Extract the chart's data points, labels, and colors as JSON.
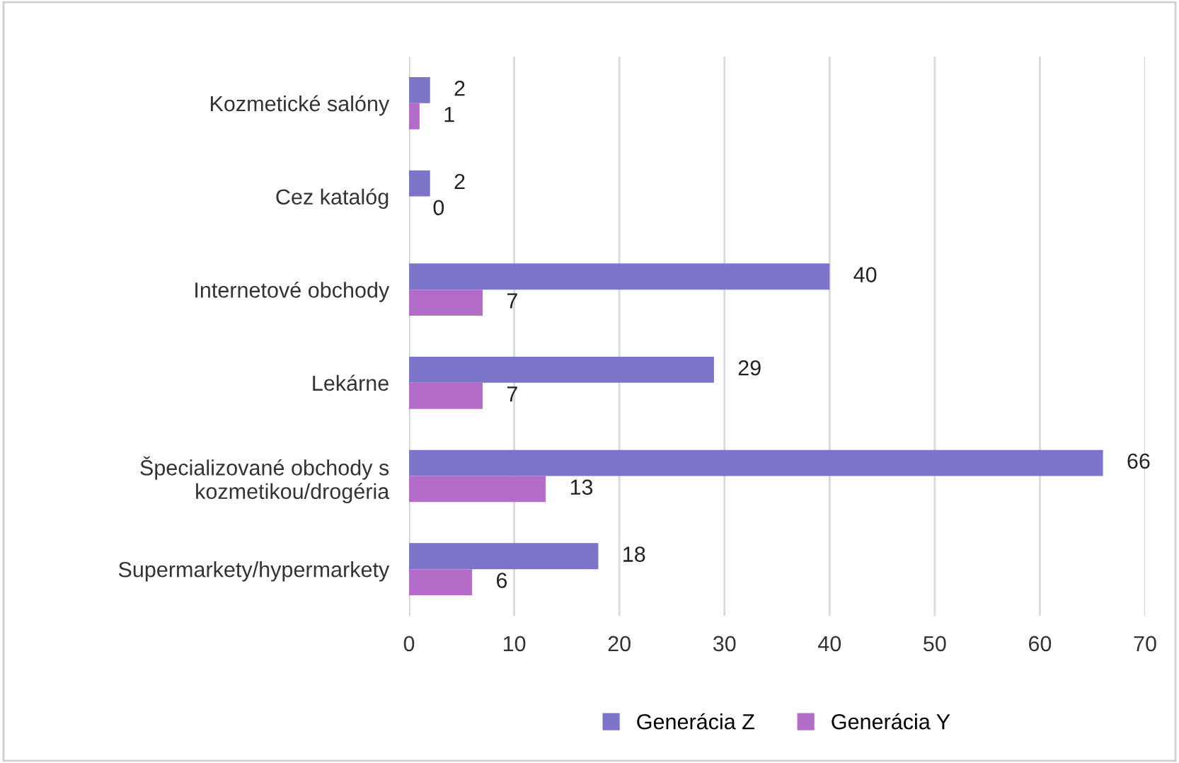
{
  "chart_data": {
    "type": "bar",
    "orientation": "horizontal",
    "categories": [
      "Kozmetické salóny",
      "Cez katalóg",
      "Internetové obchody",
      "Lekárne",
      "Špecializované obchody s\nkozmetikou/drogéria",
      "Supermarkety/hypermarkety"
    ],
    "series": [
      {
        "name": "Generácia Z",
        "color": "#7b74c9",
        "values": [
          2,
          2,
          40,
          29,
          66,
          18
        ]
      },
      {
        "name": "Generácia Y",
        "color": "#b46cc9",
        "values": [
          1,
          0,
          7,
          7,
          13,
          6
        ]
      }
    ],
    "xlim": [
      0,
      70
    ],
    "xticks": [
      0,
      10,
      20,
      30,
      40,
      50,
      60,
      70
    ],
    "grid": "x",
    "legend": "bottom",
    "data_labels": true
  }
}
